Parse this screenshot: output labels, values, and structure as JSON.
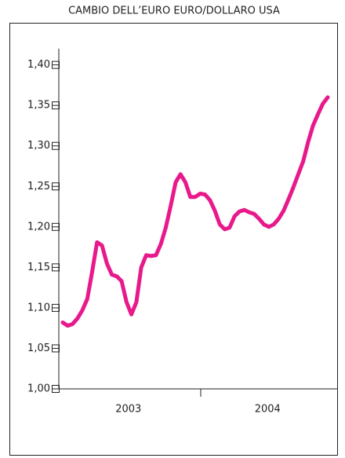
{
  "chart_data": {
    "type": "line",
    "title": "CAMBIO DELL’EURO EURO/DOLLARO USA",
    "x_axis_labels": [
      "2003",
      "2004"
    ],
    "values": [
      1.082,
      1.078,
      1.08,
      1.087,
      1.097,
      1.111,
      1.145,
      1.181,
      1.177,
      1.155,
      1.141,
      1.139,
      1.133,
      1.107,
      1.092,
      1.107,
      1.15,
      1.165,
      1.164,
      1.165,
      1.179,
      1.199,
      1.226,
      1.255,
      1.265,
      1.255,
      1.237,
      1.237,
      1.241,
      1.24,
      1.233,
      1.22,
      1.203,
      1.197,
      1.199,
      1.213,
      1.219,
      1.221,
      1.218,
      1.216,
      1.21,
      1.203,
      1.2,
      1.203,
      1.21,
      1.22,
      1.234,
      1.249,
      1.265,
      1.281,
      1.305,
      1.325,
      1.339,
      1.352,
      1.36
    ],
    "color": "#e8198b",
    "ylim": [
      1.0,
      1.42
    ],
    "yticks": [
      {
        "value": 1.0,
        "label": "1,00"
      },
      {
        "value": 1.05,
        "label": "1,05"
      },
      {
        "value": 1.1,
        "label": "1,10"
      },
      {
        "value": 1.15,
        "label": "1,15"
      },
      {
        "value": 1.2,
        "label": "1,20"
      },
      {
        "value": 1.25,
        "label": "1,25"
      },
      {
        "value": 1.3,
        "label": "1,30"
      },
      {
        "value": 1.35,
        "label": "1,35"
      },
      {
        "value": 1.4,
        "label": "1,40"
      }
    ],
    "grid": false
  }
}
